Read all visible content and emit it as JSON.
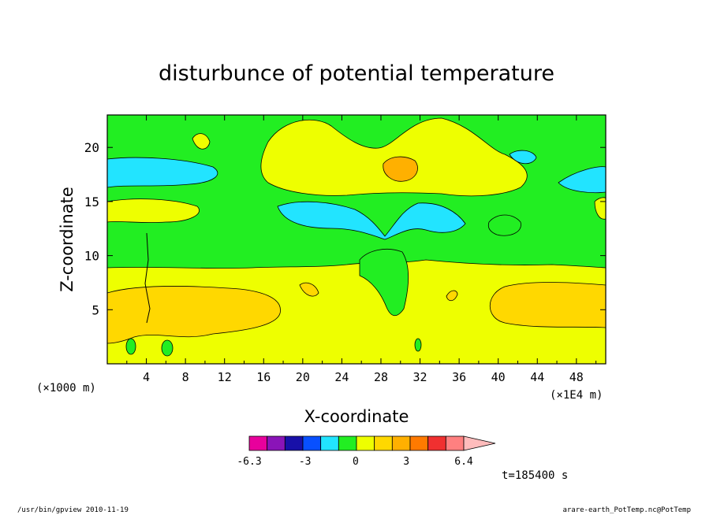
{
  "chart_data": {
    "type": "heatmap",
    "title": "disturbunce of potential temperature",
    "xlabel": "X-coordinate",
    "ylabel": "Z-coordinate",
    "x_unit_left": "(×1000 m)",
    "x_unit_right": "(×1E4 m)",
    "x_ticks": [
      "4",
      "8",
      "12",
      "16",
      "20",
      "24",
      "28",
      "32",
      "36",
      "40",
      "44",
      "48"
    ],
    "y_ticks": [
      "5",
      "10",
      "15",
      "20"
    ],
    "xlim": [
      0,
      51
    ],
    "ylim": [
      0,
      23
    ],
    "colorbar": {
      "colors": [
        "#e8009c",
        "#8a14b8",
        "#1810a8",
        "#0850ff",
        "#22e4ff",
        "#22ee22",
        "#eeff00",
        "#ffd800",
        "#ffb000",
        "#ff7a00",
        "#f03030",
        "#ff8080",
        "#ffbcbc"
      ],
      "labels": [
        "-6.3",
        "-3",
        "0",
        "3",
        "6.4"
      ],
      "min": -6.3,
      "max": 6.4
    },
    "regions": [
      {
        "level": "positive-small",
        "color": "#eeff00",
        "area": "lower layer z 0-9 across domain"
      },
      {
        "level": "positive-medium",
        "color": "#ffd800",
        "area": "z 2-7 at x 0-18 and x 39-51"
      },
      {
        "level": "near-zero",
        "color": "#22ee22",
        "area": "upper layer z 9-23"
      },
      {
        "level": "negative-small",
        "color": "#22e4ff",
        "area": "z 17-19 at x 0-11, z 12-15 at x 18-36"
      },
      {
        "level": "positive-large",
        "color": "#ffb000",
        "area": "z 18-19 near x 30"
      }
    ],
    "annotation_time": "t=185400 s"
  },
  "footer": {
    "left": "/usr/bin/gpview  2010-11-19",
    "right": "arare-earth_PotTemp.nc@PotTemp"
  }
}
